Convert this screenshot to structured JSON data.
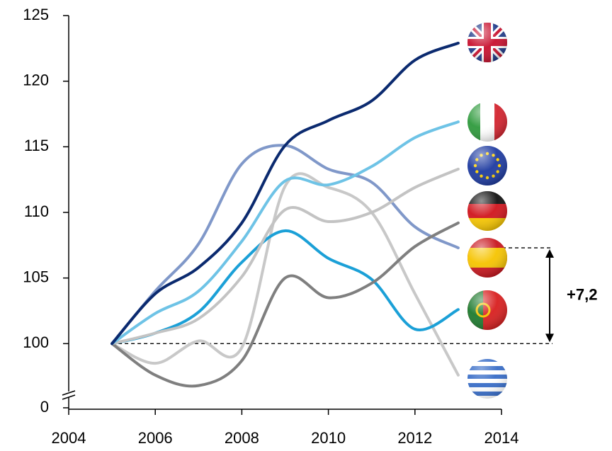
{
  "chart_data": {
    "type": "line",
    "x": [
      2005,
      2006,
      2007,
      2008,
      2009,
      2010,
      2011,
      2012,
      2013
    ],
    "series": [
      {
        "color": "#0b2a6f",
        "values": [
          100,
          103.8,
          105.8,
          109.2,
          115.1,
          117.0,
          118.5,
          121.6,
          122.9
        ]
      },
      {
        "color": "#6ec3e6",
        "values": [
          100,
          102.3,
          104.0,
          107.8,
          112.4,
          112.1,
          113.5,
          115.7,
          116.9
        ]
      },
      {
        "color": "#c3c3c3",
        "values": [
          100,
          100.8,
          101.9,
          105.1,
          110.2,
          109.3,
          110.0,
          111.9,
          113.3
        ]
      },
      {
        "color": "#7f7f7f",
        "values": [
          100,
          97.6,
          96.8,
          98.7,
          105.0,
          103.5,
          104.6,
          107.4,
          109.2
        ]
      },
      {
        "color": "#8098c9",
        "values": [
          100,
          104.0,
          107.6,
          113.7,
          115.1,
          113.3,
          112.3,
          108.9,
          107.3
        ]
      },
      {
        "color": "#1ba0d7",
        "values": [
          100,
          100.8,
          102.4,
          106.2,
          108.6,
          106.5,
          104.9,
          101.1,
          102.6
        ]
      },
      {
        "color": "#c8c8c8",
        "values": [
          100,
          98.5,
          100.2,
          99.7,
          112.0,
          111.9,
          110.0,
          103.8,
          97.6
        ]
      }
    ],
    "xlim": [
      2004,
      2014
    ],
    "xticks": [
      2004,
      2006,
      2008,
      2010,
      2012,
      2014
    ],
    "ylim": [
      95,
      125
    ],
    "yticks": [
      0,
      100,
      105,
      110,
      115,
      120,
      125
    ],
    "axis_break": true,
    "annotation": "+7,2"
  }
}
